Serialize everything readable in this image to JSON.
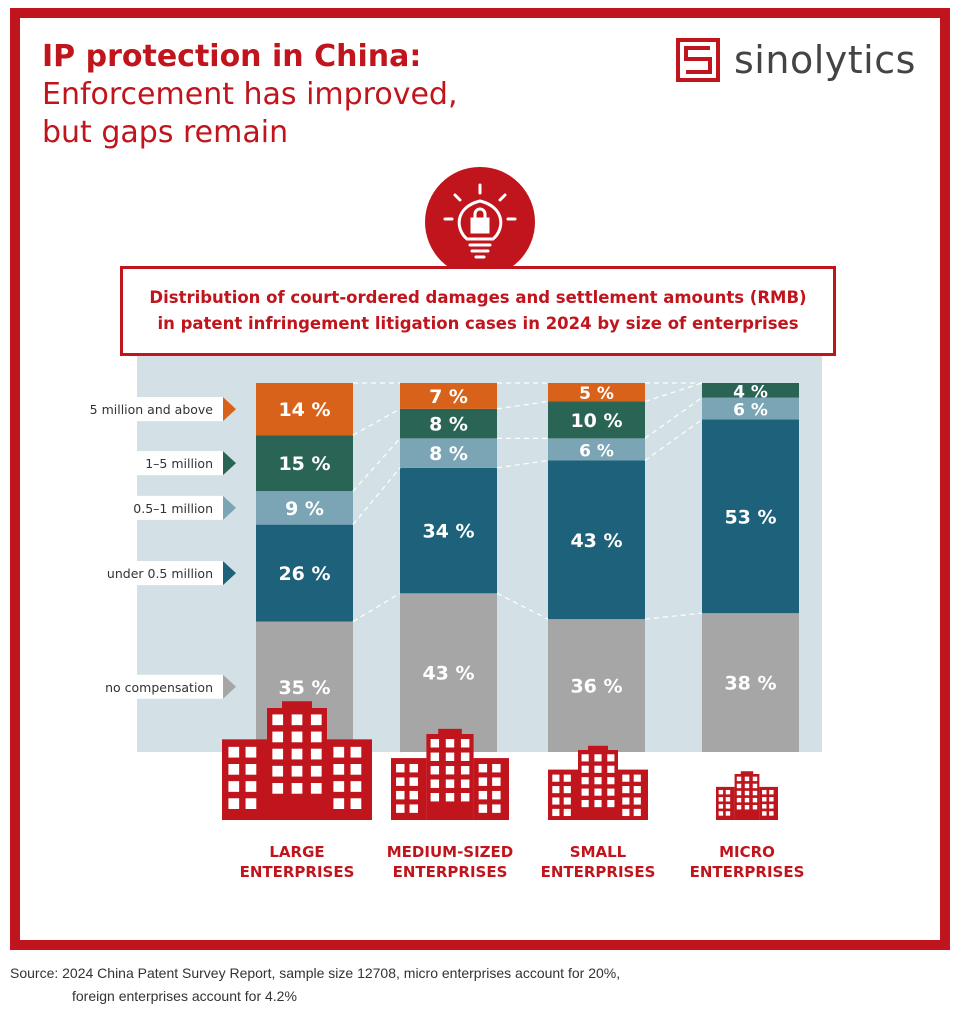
{
  "title": {
    "line1": "IP protection in China:",
    "line2": "Enforcement has improved,",
    "line3": "but gaps remain"
  },
  "logo": {
    "text": "sinolytics",
    "icon": "sinolytics-s-square-icon"
  },
  "header_icon": "lightbulb-lock-icon",
  "chart_data": {
    "type": "bar",
    "stacked": true,
    "title": "Distribution of court-ordered damages and settlement amounts (RMB) in patent infringement litigation cases in 2024 by size of enterprises",
    "title_line1": "Distribution of court-ordered damages and settlement amounts (RMB)",
    "title_line2": "in patent infringement litigation cases in 2024 by size of enterprises",
    "categories": [
      "LARGE ENTERPRISES",
      "MEDIUM-SIZED ENTERPRISES",
      "SMALL ENTERPRISES",
      "MICRO ENTERPRISES"
    ],
    "category_lines": [
      [
        "LARGE",
        "ENTERPRISES"
      ],
      [
        "MEDIUM-SIZED",
        "ENTERPRISES"
      ],
      [
        "SMALL",
        "ENTERPRISES"
      ],
      [
        "MICRO",
        "ENTERPRISES"
      ]
    ],
    "unit": "%",
    "series": [
      {
        "name": "no compensation",
        "color": "#a6a6a6",
        "values": [
          35,
          43,
          36,
          38
        ]
      },
      {
        "name": "under 0.5 million",
        "color": "#1d627a",
        "values": [
          26,
          34,
          43,
          53
        ]
      },
      {
        "name": "0.5–1 million",
        "color": "#7ba4b4",
        "values": [
          9,
          8,
          6,
          6
        ]
      },
      {
        "name": "1–5 million",
        "color": "#2a6455",
        "values": [
          15,
          8,
          10,
          4
        ]
      },
      {
        "name": "5 million and above",
        "color": "#d8621a",
        "values": [
          14,
          7,
          5,
          0
        ]
      }
    ],
    "legend_placement": "left",
    "colors": {
      "accent": "#c0151d",
      "panel": "#d3e1e7"
    }
  },
  "source": {
    "line1": "Source: 2024 China Patent Survey Report, sample size 12708, micro enterprises account for 20%,",
    "line2": "foreign enterprises account for 4.2%"
  }
}
